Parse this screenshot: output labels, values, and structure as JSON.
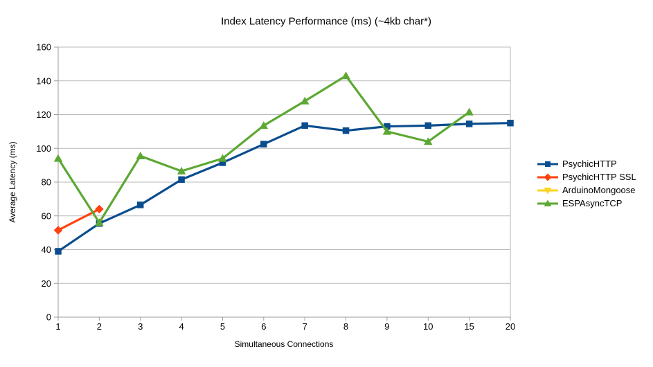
{
  "title": "Index Latency Performance (ms) (~4kb char*)",
  "chart_data": {
    "type": "line",
    "title": "Index Latency Performance (ms) (~4kb char*)",
    "xlabel": "Simultaneous Connections",
    "ylabel": "Average Latency (ms)",
    "categories": [
      "1",
      "2",
      "3",
      "4",
      "5",
      "6",
      "7",
      "8",
      "9",
      "10",
      "15",
      "20"
    ],
    "ylim": [
      0,
      160
    ],
    "ytick_step": 20,
    "grid": "horizontal",
    "legend_position": "right",
    "series": [
      {
        "name": "PsychicHTTP",
        "color": "#0A4D8E",
        "marker": "square",
        "values": [
          39,
          55.5,
          66.5,
          81.5,
          91.5,
          102.5,
          113.5,
          110.5,
          113,
          113.5,
          114.5,
          115
        ]
      },
      {
        "name": "PsychicHTTP SSL",
        "color": "#FF420E",
        "marker": "diamond",
        "values": [
          51.5,
          64,
          null,
          null,
          null,
          null,
          null,
          null,
          null,
          null,
          null,
          null
        ]
      },
      {
        "name": "ArduinoMongoose",
        "color": "#FFD320",
        "marker": "triangle-down",
        "values": [
          null,
          null,
          null,
          null,
          null,
          null,
          null,
          null,
          null,
          null,
          null,
          null
        ]
      },
      {
        "name": "ESPAsyncTCP",
        "color": "#5BA832",
        "marker": "triangle-up",
        "values": [
          94,
          56,
          95.5,
          86.5,
          94,
          113.5,
          128,
          143,
          110,
          104,
          121.5,
          null
        ]
      }
    ],
    "colors": {
      "grid": "#b9b9b9",
      "axis": "#9b9b9b",
      "text": "#000000",
      "background": "#ffffff"
    }
  }
}
